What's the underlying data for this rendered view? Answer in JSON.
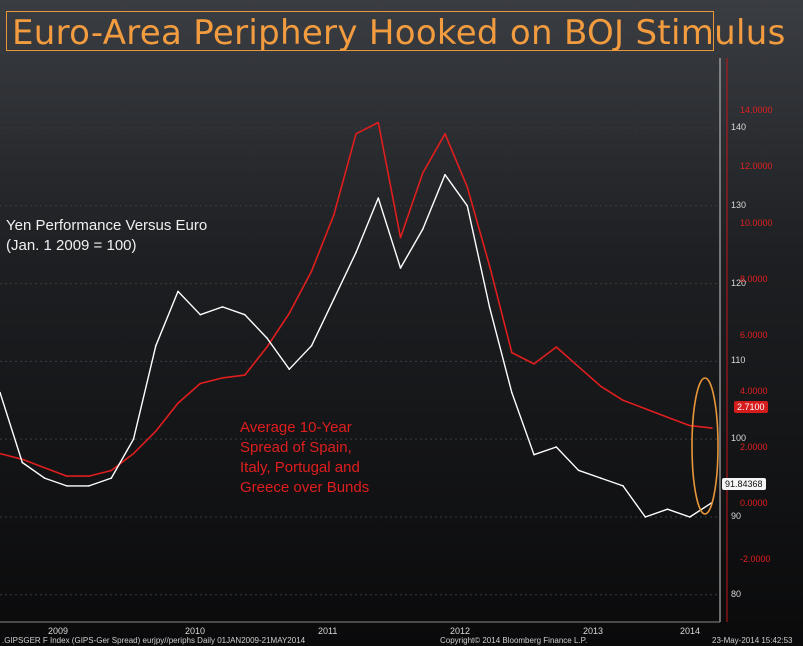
{
  "title": "Euro-Area Periphery Hooked on BOJ Stimulus",
  "annotations": {
    "yen_line1": "Yen Performance Versus Euro",
    "yen_line2": "(Jan. 1 2009 = 100)",
    "spread_line1": "Average 10-Year",
    "spread_line2": "Spread of Spain,",
    "spread_line3": "Italy, Portugal and",
    "spread_line4": "Greece over Bunds"
  },
  "footer": {
    "left": ".GIPSGER F Index (GIPS-Ger Spread) eurjpy//periphs  Daily 01JAN2009-21MAY2014",
    "center": "Copyright© 2014 Bloomberg Finance L.P.",
    "right": "23-May-2014 15:42:53"
  },
  "colors": {
    "title": "#f29c3f",
    "yen": "#ffffff",
    "spread": "#e01e1e",
    "highlight": "#e8963a"
  },
  "chart_data": {
    "type": "line",
    "x": [
      "2009-01",
      "2009-03",
      "2009-05",
      "2009-07",
      "2009-09",
      "2009-11",
      "2010-01",
      "2010-03",
      "2010-05",
      "2010-07",
      "2010-09",
      "2010-11",
      "2011-01",
      "2011-03",
      "2011-05",
      "2011-07",
      "2011-09",
      "2011-11",
      "2012-01",
      "2012-03",
      "2012-05",
      "2012-07",
      "2012-09",
      "2012-11",
      "2013-01",
      "2013-03",
      "2013-05",
      "2013-07",
      "2013-09",
      "2013-11",
      "2014-01",
      "2014-03",
      "2014-05"
    ],
    "series": [
      {
        "name": "Yen Performance Versus Euro",
        "axis": "left",
        "values": [
          106,
          97,
          95,
          94,
          94,
          95,
          100,
          112,
          119,
          116,
          117,
          116,
          113,
          109,
          112,
          118,
          124,
          131,
          122,
          127,
          134,
          130,
          117,
          106,
          98,
          99,
          96,
          95,
          94,
          90,
          91,
          90,
          91.84368
        ]
      },
      {
        "name": "Average 10-Year Spread of Spain, Italy, Portugal and Greece over Bunds",
        "axis": "right",
        "values": [
          1.8,
          1.6,
          1.3,
          1.0,
          1.0,
          1.2,
          1.8,
          2.6,
          3.6,
          4.3,
          4.5,
          4.6,
          5.6,
          6.8,
          8.3,
          10.3,
          13.2,
          13.6,
          9.5,
          11.8,
          13.2,
          11.3,
          8.5,
          5.4,
          5.0,
          5.6,
          4.9,
          4.2,
          3.7,
          3.4,
          3.1,
          2.8,
          2.71
        ]
      }
    ],
    "left_axis": {
      "ticks": [
        80,
        90,
        100,
        110,
        120,
        130,
        140
      ],
      "range": [
        76.5,
        149
      ]
    },
    "right_axis": {
      "ticks": [
        -2,
        0,
        2,
        4,
        6,
        8,
        10,
        12,
        14
      ],
      "tick_labels": [
        "-2.0000",
        "0.0000",
        "2.0000",
        "4.0000",
        "6.0000",
        "8.0000",
        "10.0000",
        "12.0000",
        "14.0000"
      ],
      "range": [
        -4.2,
        15.9
      ]
    },
    "x_labels": [
      "2009",
      "2010",
      "2011",
      "2012",
      "2013",
      "2014"
    ],
    "last_values": {
      "yen": "91.84368",
      "spread": "2.7100"
    }
  }
}
